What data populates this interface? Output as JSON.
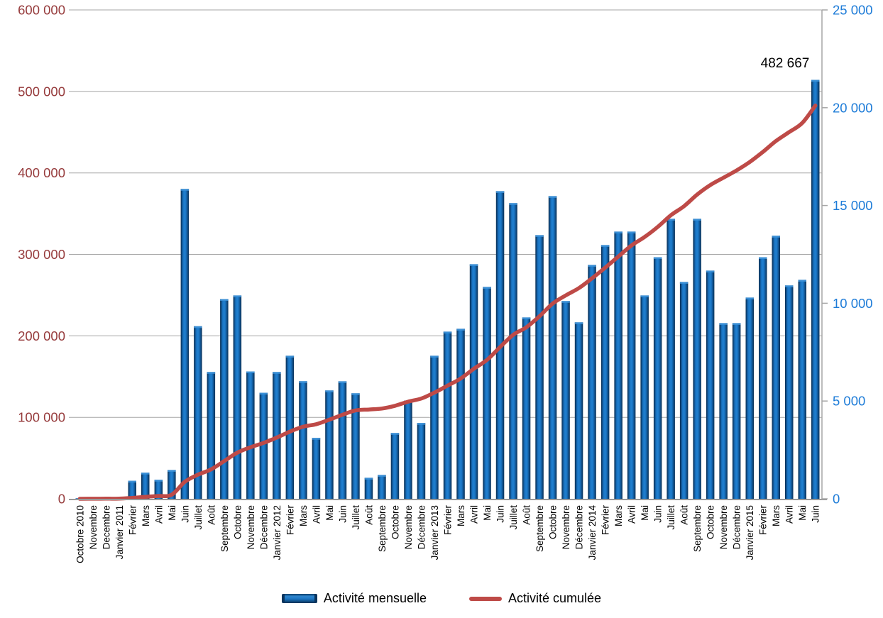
{
  "chart_data": {
    "type": "combo",
    "title": "",
    "categories": [
      "Octobre 2010",
      "Novembre",
      "Decembre",
      "Janvier 2011",
      "Février",
      "Mars",
      "Avril",
      "Mai",
      "Juin",
      "Juillet",
      "Août",
      "Septembre",
      "Octobre",
      "Novembre",
      "Décembre",
      "Janvier 2012",
      "Février",
      "Mars",
      "Avril",
      "Mai",
      "Juin",
      "Juillet",
      "Août",
      "Septembre",
      "Octobre",
      "Novembre",
      "Décembre",
      "Janvier 2013",
      "Février",
      "Mars",
      "Avril",
      "Mai",
      "Juin",
      "Juillet",
      "Août",
      "Septembre",
      "Octobre",
      "Novembre",
      "Décembre",
      "Janvier 2014",
      "Février",
      "Mars",
      "Avril",
      "Mai",
      "Juin",
      "Juillet",
      "Août",
      "Septembre",
      "Octobre",
      "Novembre",
      "Décembre",
      "Janvier 2015",
      "Février",
      "Mars",
      "Avril",
      "Mai",
      "Juin"
    ],
    "series": [
      {
        "name": "Activité mensuelle",
        "type": "bar",
        "axis": "right",
        "color": "#1B74C0",
        "values": [
          30,
          50,
          60,
          80,
          924,
          1334,
          974,
          1474,
          15844,
          8824,
          6484,
          10214,
          10399,
          6514,
          5424,
          6484,
          7314,
          6014,
          3114,
          5539,
          6009,
          5394,
          1074,
          1219,
          3364,
          5024,
          3874,
          7314,
          8549,
          8694,
          11994,
          10834,
          15734,
          15119,
          9274,
          13484,
          15479,
          10114,
          9024,
          11959,
          12974,
          13664,
          13664,
          10399,
          12354,
          14319,
          11089,
          14319,
          11669,
          8984,
          8984,
          10289,
          12354,
          13449,
          10909,
          11199,
          21424
        ]
      },
      {
        "name": "Activité cumulée",
        "type": "line",
        "axis": "left",
        "color": "#BE4A47",
        "derived": "cumulative_sum_of_monthly_values",
        "final_value": 482667
      }
    ],
    "left_axis": {
      "min": 0,
      "max": 600000,
      "step": 100000,
      "labels": [
        "600 000",
        "500 000",
        "400 000",
        "300 000",
        "200 000",
        "100 000",
        "0"
      ],
      "color": "#963B3C"
    },
    "right_axis": {
      "min": 0,
      "max": 25000,
      "step": 5000,
      "labels": [
        "25 000",
        "20 000",
        "15 000",
        "10 000",
        "5 000",
        "0"
      ],
      "color": "#1E7CD8"
    },
    "annotation": {
      "text": "482 667",
      "attached_to": "line_end"
    },
    "legend": {
      "position": "bottom"
    },
    "grid": true,
    "layout_hints": {
      "xlabels_rotated_90": true,
      "line_in_front_of_bars": true
    }
  }
}
